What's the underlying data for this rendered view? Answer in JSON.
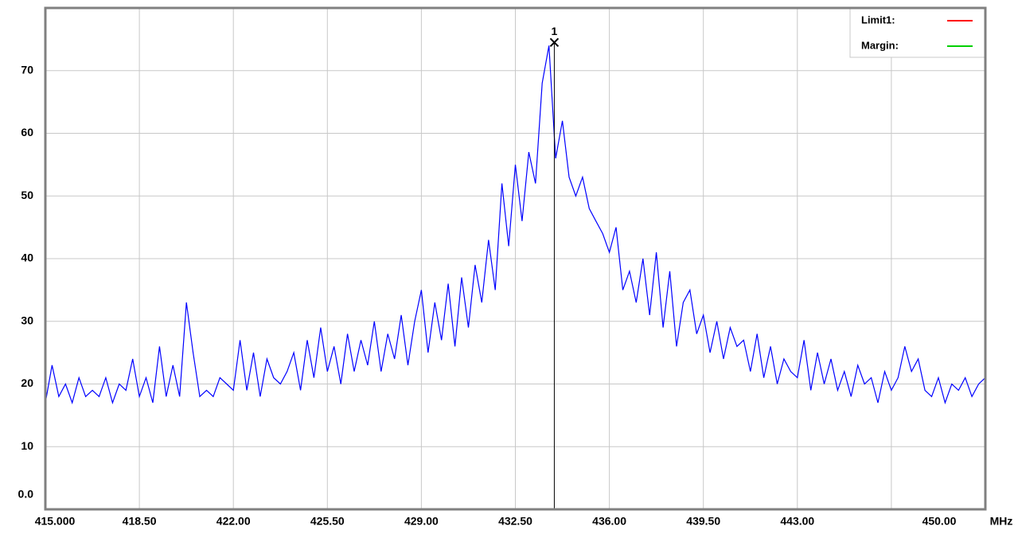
{
  "chart_data": {
    "type": "line",
    "x_unit": "MHz",
    "x": [
      415,
      415.25,
      415.5,
      415.75,
      416,
      416.25,
      416.5,
      416.75,
      417,
      417.25,
      417.5,
      417.75,
      418,
      418.25,
      418.5,
      418.75,
      419,
      419.25,
      419.5,
      419.75,
      420,
      420.25,
      420.5,
      420.75,
      421,
      421.25,
      421.5,
      421.75,
      422,
      422.25,
      422.5,
      422.75,
      423,
      423.25,
      423.5,
      423.75,
      424,
      424.25,
      424.5,
      424.75,
      425,
      425.25,
      425.5,
      425.75,
      426,
      426.25,
      426.5,
      426.75,
      427,
      427.25,
      427.5,
      427.75,
      428,
      428.25,
      428.5,
      428.75,
      429,
      429.25,
      429.5,
      429.75,
      430,
      430.25,
      430.5,
      430.75,
      431,
      431.25,
      431.5,
      431.75,
      432,
      432.25,
      432.5,
      432.75,
      433,
      433.25,
      433.5,
      433.75,
      434,
      434.25,
      434.5,
      434.75,
      435,
      435.25,
      435.5,
      435.75,
      436,
      436.25,
      436.5,
      436.75,
      437,
      437.25,
      437.5,
      437.75,
      438,
      438.25,
      438.5,
      438.75,
      439,
      439.25,
      439.5,
      439.75,
      440,
      440.25,
      440.5,
      440.75,
      441,
      441.25,
      441.5,
      441.75,
      442,
      442.25,
      442.5,
      442.75,
      443,
      443.25,
      443.5,
      443.75,
      444,
      444.25,
      444.5,
      444.75,
      445,
      445.25,
      445.5,
      445.75,
      446,
      446.25,
      446.5,
      446.75,
      447,
      447.25,
      447.5,
      447.75,
      448,
      448.25,
      448.5,
      448.75,
      449,
      449.25,
      449.5,
      449.75,
      450
    ],
    "series": [
      {
        "color": "#0000ff",
        "values": [
          17,
          23,
          18,
          20,
          17,
          21,
          18,
          19,
          18,
          21,
          17,
          20,
          19,
          24,
          18,
          21,
          17,
          26,
          18,
          23,
          18,
          33,
          25,
          18,
          19,
          18,
          21,
          20,
          19,
          27,
          19,
          25,
          18,
          24,
          21,
          20,
          22,
          25,
          19,
          27,
          21,
          29,
          22,
          26,
          20,
          28,
          22,
          27,
          23,
          30,
          22,
          28,
          24,
          31,
          23,
          30,
          35,
          25,
          33,
          27,
          36,
          26,
          37,
          29,
          39,
          33,
          43,
          35,
          52,
          42,
          55,
          46,
          57,
          52,
          68,
          74,
          56,
          62,
          53,
          50,
          53,
          48,
          46,
          44,
          41,
          45,
          35,
          38,
          33,
          40,
          31,
          41,
          29,
          38,
          26,
          33,
          35,
          28,
          31,
          25,
          30,
          24,
          29,
          26,
          27,
          22,
          28,
          21,
          26,
          20,
          24,
          22,
          21,
          27,
          19,
          25,
          20,
          24,
          19,
          22,
          18,
          23,
          20,
          21,
          17,
          22,
          19,
          21,
          26,
          22,
          24,
          19,
          18,
          21,
          17,
          20,
          19,
          21,
          18,
          20,
          21
        ]
      }
    ],
    "xlim": [
      415,
      450
    ],
    "xticks": [
      {
        "value": 415,
        "label": "415.000"
      },
      {
        "value": 418.5,
        "label": "418.50"
      },
      {
        "value": 422,
        "label": "422.00"
      },
      {
        "value": 425.5,
        "label": "425.50"
      },
      {
        "value": 429,
        "label": "429.00"
      },
      {
        "value": 432.5,
        "label": "432.50"
      },
      {
        "value": 436,
        "label": "436.00"
      },
      {
        "value": 439.5,
        "label": "439.50"
      },
      {
        "value": 443,
        "label": "443.00"
      },
      {
        "value": 446.5,
        "label": null
      },
      {
        "value": 450,
        "label": "450.00"
      }
    ],
    "ylim": [
      0,
      80
    ],
    "yticks": [
      {
        "value": 0,
        "label": "0.0"
      },
      10,
      20,
      30,
      40,
      50,
      60,
      70
    ],
    "grid": true,
    "marker": {
      "label": "1",
      "x": 433.95,
      "y": 74.5
    },
    "legend": [
      {
        "name": "Limit1:",
        "color": "#ff0000"
      },
      {
        "name": "Margin:",
        "color": "#00d000"
      }
    ]
  }
}
